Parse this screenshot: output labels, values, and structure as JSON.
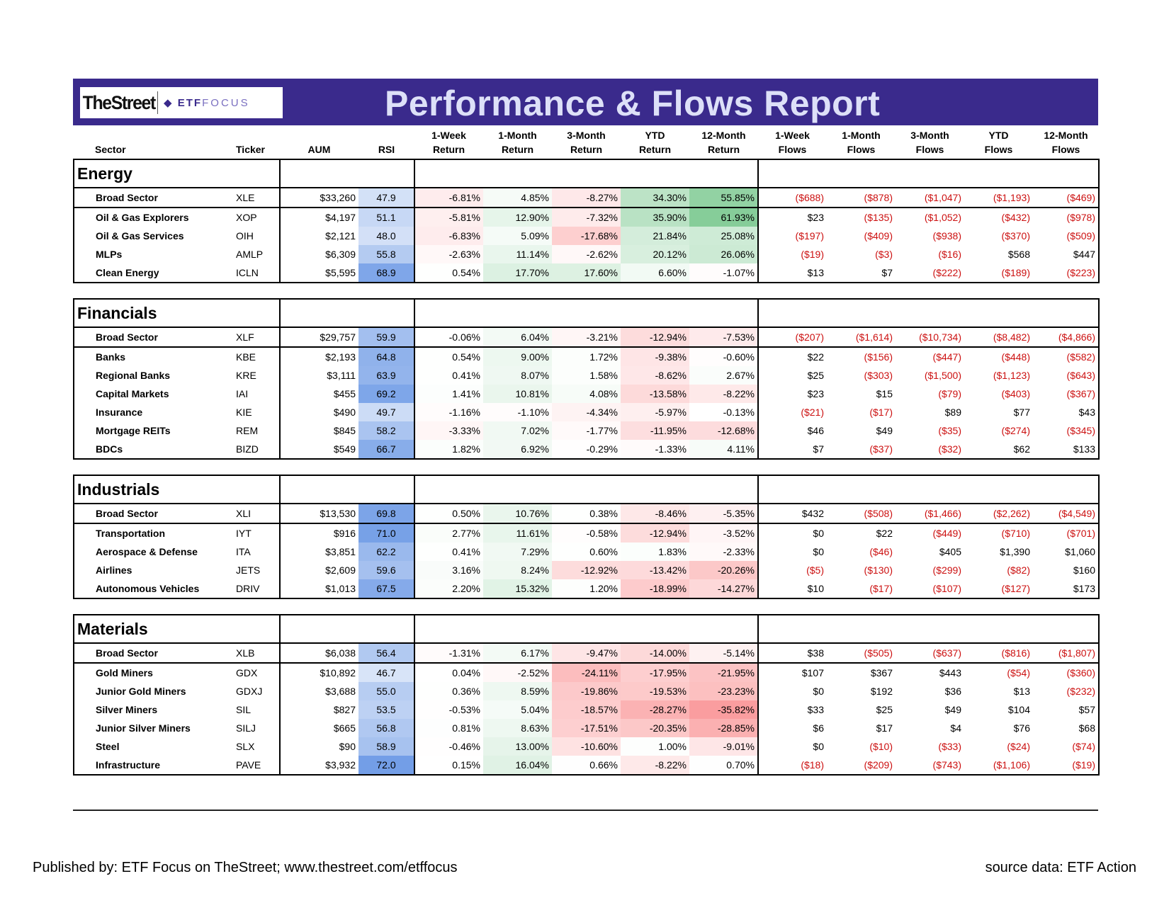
{
  "header": {
    "logo_street": "TheStreet",
    "logo_etf": "ETF",
    "logo_focus": "FOCUS",
    "title": "Performance & Flows Report"
  },
  "columns": [
    "Sector",
    "Ticker",
    "AUM",
    "RSI",
    "1-Week Return",
    "1-Month Return",
    "3-Month Return",
    "YTD Return",
    "12-Month Return",
    "1-Week Flows",
    "1-Month Flows",
    "3-Month Flows",
    "YTD Flows",
    "12-Month Flows"
  ],
  "column_lines": [
    [
      "",
      "Sector"
    ],
    [
      "",
      "Ticker"
    ],
    [
      "",
      "AUM"
    ],
    [
      "",
      "RSI"
    ],
    [
      "1-Week",
      "Return"
    ],
    [
      "1-Month",
      "Return"
    ],
    [
      "3-Month",
      "Return"
    ],
    [
      "YTD",
      "Return"
    ],
    [
      "12-Month",
      "Return"
    ],
    [
      "1-Week",
      "Flows"
    ],
    [
      "1-Month",
      "Flows"
    ],
    [
      "3-Month",
      "Flows"
    ],
    [
      "YTD",
      "Flows"
    ],
    [
      "12-Month",
      "Flows"
    ]
  ],
  "sections": [
    {
      "name": "Energy",
      "rows": [
        [
          "Broad Sector",
          "XLE",
          "$33,260",
          "47.9",
          "-6.81%",
          "4.85%",
          "-8.27%",
          "34.30%",
          "55.85%",
          "($688)",
          "($878)",
          "($1,047)",
          "($1,193)",
          "($469)"
        ],
        [
          "Oil & Gas Explorers",
          "XOP",
          "$4,197",
          "51.1",
          "-5.81%",
          "12.90%",
          "-7.32%",
          "35.90%",
          "61.93%",
          "$23",
          "($135)",
          "($1,052)",
          "($432)",
          "($978)"
        ],
        [
          "Oil & Gas Services",
          "OIH",
          "$2,121",
          "48.0",
          "-6.83%",
          "5.09%",
          "-17.68%",
          "21.84%",
          "25.08%",
          "($197)",
          "($409)",
          "($938)",
          "($370)",
          "($509)"
        ],
        [
          "MLPs",
          "AMLP",
          "$6,309",
          "55.8",
          "-2.63%",
          "11.14%",
          "-2.62%",
          "20.12%",
          "26.06%",
          "($19)",
          "($3)",
          "($16)",
          "$568",
          "$447"
        ],
        [
          "Clean Energy",
          "ICLN",
          "$5,595",
          "68.9",
          "0.54%",
          "17.70%",
          "17.60%",
          "6.60%",
          "-1.07%",
          "$13",
          "$7",
          "($222)",
          "($189)",
          "($223)"
        ]
      ]
    },
    {
      "name": "Financials",
      "rows": [
        [
          "Broad Sector",
          "XLF",
          "$29,757",
          "59.9",
          "-0.06%",
          "6.04%",
          "-3.21%",
          "-12.94%",
          "-7.53%",
          "($207)",
          "($1,614)",
          "($10,734)",
          "($8,482)",
          "($4,866)"
        ],
        [
          "Banks",
          "KBE",
          "$2,193",
          "64.8",
          "0.54%",
          "9.00%",
          "1.72%",
          "-9.38%",
          "-0.60%",
          "$22",
          "($156)",
          "($447)",
          "($448)",
          "($582)"
        ],
        [
          "Regional Banks",
          "KRE",
          "$3,111",
          "63.9",
          "0.41%",
          "8.07%",
          "1.58%",
          "-8.62%",
          "2.67%",
          "$25",
          "($303)",
          "($1,500)",
          "($1,123)",
          "($643)"
        ],
        [
          "Capital Markets",
          "IAI",
          "$455",
          "69.2",
          "1.41%",
          "10.81%",
          "4.08%",
          "-13.58%",
          "-8.22%",
          "$23",
          "$15",
          "($79)",
          "($403)",
          "($367)"
        ],
        [
          "Insurance",
          "KIE",
          "$490",
          "49.7",
          "-1.16%",
          "-1.10%",
          "-4.34%",
          "-5.97%",
          "-0.13%",
          "($21)",
          "($17)",
          "$89",
          "$77",
          "$43"
        ],
        [
          "Mortgage REITs",
          "REM",
          "$845",
          "58.2",
          "-3.33%",
          "7.02%",
          "-1.77%",
          "-11.95%",
          "-12.68%",
          "$46",
          "$49",
          "($35)",
          "($274)",
          "($345)"
        ],
        [
          "BDCs",
          "BIZD",
          "$549",
          "66.7",
          "1.82%",
          "6.92%",
          "-0.29%",
          "-1.33%",
          "4.11%",
          "$7",
          "($37)",
          "($32)",
          "$62",
          "$133"
        ]
      ]
    },
    {
      "name": "Industrials",
      "rows": [
        [
          "Broad Sector",
          "XLI",
          "$13,530",
          "69.8",
          "0.50%",
          "10.76%",
          "0.38%",
          "-8.46%",
          "-5.35%",
          "$432",
          "($508)",
          "($1,466)",
          "($2,262)",
          "($4,549)"
        ],
        [
          "Transportation",
          "IYT",
          "$916",
          "71.0",
          "2.77%",
          "11.61%",
          "-0.58%",
          "-12.94%",
          "-3.52%",
          "$0",
          "$22",
          "($449)",
          "($710)",
          "($701)"
        ],
        [
          "Aerospace & Defense",
          "ITA",
          "$3,851",
          "62.2",
          "0.41%",
          "7.29%",
          "0.60%",
          "1.83%",
          "-2.33%",
          "$0",
          "($46)",
          "$405",
          "$1,390",
          "$1,060"
        ],
        [
          "Airlines",
          "JETS",
          "$2,609",
          "59.6",
          "3.16%",
          "8.24%",
          "-12.92%",
          "-13.42%",
          "-20.26%",
          "($5)",
          "($130)",
          "($299)",
          "($82)",
          "$160"
        ],
        [
          "Autonomous Vehicles",
          "DRIV",
          "$1,013",
          "67.5",
          "2.20%",
          "15.32%",
          "1.20%",
          "-18.99%",
          "-14.27%",
          "$10",
          "($17)",
          "($107)",
          "($127)",
          "$173"
        ]
      ]
    },
    {
      "name": "Materials",
      "rows": [
        [
          "Broad Sector",
          "XLB",
          "$6,038",
          "56.4",
          "-1.31%",
          "6.17%",
          "-9.47%",
          "-14.00%",
          "-5.14%",
          "$38",
          "($505)",
          "($637)",
          "($816)",
          "($1,807)"
        ],
        [
          "Gold Miners",
          "GDX",
          "$10,892",
          "46.7",
          "0.04%",
          "-2.52%",
          "-24.11%",
          "-17.95%",
          "-21.95%",
          "$107",
          "$367",
          "$443",
          "($54)",
          "($360)"
        ],
        [
          "Junior Gold Miners",
          "GDXJ",
          "$3,688",
          "55.0",
          "0.36%",
          "8.59%",
          "-19.86%",
          "-19.53%",
          "-23.23%",
          "$0",
          "$192",
          "$36",
          "$13",
          "($232)"
        ],
        [
          "Silver Miners",
          "SIL",
          "$827",
          "53.5",
          "-0.53%",
          "5.04%",
          "-18.57%",
          "-28.27%",
          "-35.82%",
          "$33",
          "$25",
          "$49",
          "$104",
          "$57"
        ],
        [
          "Junior Silver Miners",
          "SILJ",
          "$665",
          "56.8",
          "0.81%",
          "8.63%",
          "-17.51%",
          "-20.35%",
          "-28.85%",
          "$6",
          "$17",
          "$4",
          "$76",
          "$68"
        ],
        [
          "Steel",
          "SLX",
          "$90",
          "58.9",
          "-0.46%",
          "13.00%",
          "-10.60%",
          "1.00%",
          "-9.01%",
          "$0",
          "($10)",
          "($33)",
          "($24)",
          "($74)"
        ],
        [
          "Infrastructure",
          "PAVE",
          "$3,932",
          "72.0",
          "0.15%",
          "16.04%",
          "0.66%",
          "-8.22%",
          "0.70%",
          "($18)",
          "($209)",
          "($743)",
          "($1,106)",
          "($19)"
        ]
      ]
    }
  ],
  "footer": {
    "published": "Published by: ETF Focus on TheStreet; www.thestreet.com/etffocus",
    "source": "source data: ETF Action"
  },
  "colors": {
    "banner": "#3a2a8c",
    "banner_text": "#dde0f8",
    "negative_flow": "#cc1010",
    "rsi_low": "#dbe6f8",
    "rsi_high": "#6f9be6",
    "return_positive": "#63be7b",
    "return_negative": "#f8696b"
  }
}
